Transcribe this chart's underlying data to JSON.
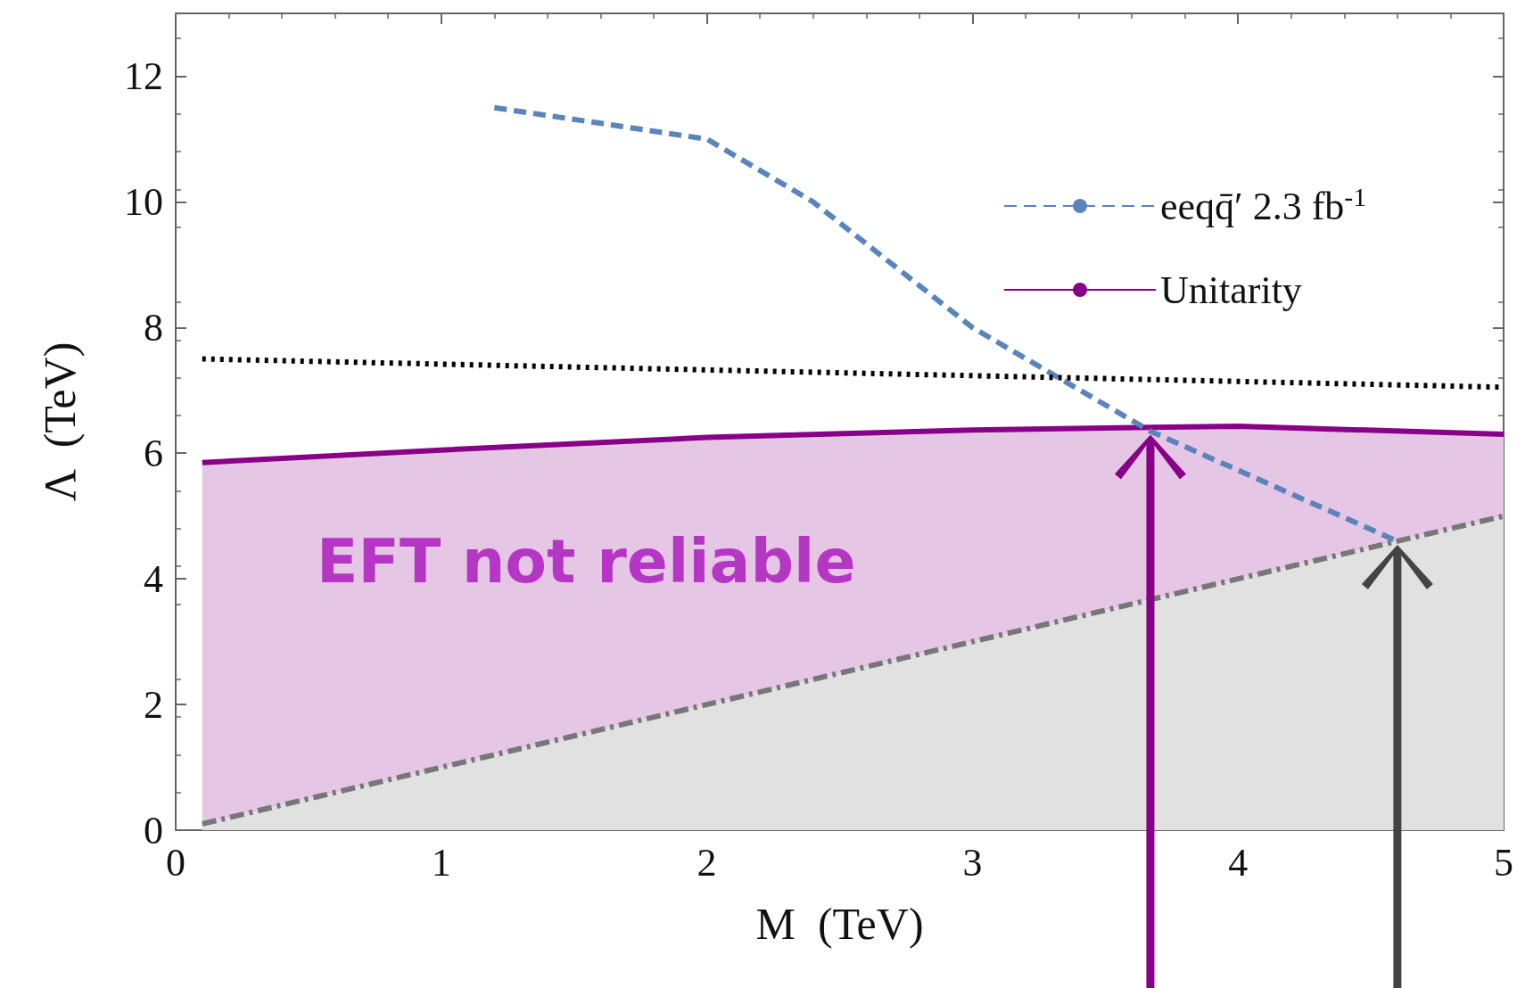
{
  "chart_data": {
    "type": "line",
    "xlabel": "M  (TeV)",
    "ylabel": "Λ  (TeV)",
    "xlim": [
      0,
      5
    ],
    "xticks": [
      0,
      1,
      2,
      3,
      4,
      5
    ],
    "ylim": [
      0,
      13
    ],
    "yticks": [
      0,
      2,
      4,
      6,
      8,
      10,
      12
    ],
    "grid": false,
    "legend": "top right",
    "marker": "none",
    "annotations": [
      "EFT not reliable"
    ],
    "series": [
      {
        "name": "eeqq̄′ 2.3 fb$^{-1}$",
        "color": "#5b84bc",
        "line_style": "dashed",
        "x": [
          1.2,
          2,
          2.4,
          3,
          3.67,
          4.6
        ],
        "values": [
          11.5,
          11,
          10,
          8,
          6.35,
          4.6
        ]
      },
      {
        "name": "Unitarity",
        "type": "area",
        "color": "#880088",
        "line_style": "solid",
        "x": [
          0.1,
          1,
          2,
          3,
          4,
          5
        ],
        "values": [
          5.85,
          6.05,
          6.25,
          6.37,
          6.43,
          6.3
        ]
      },
      {
        "color": "#000000",
        "line_style": "dotted",
        "x": [
          0.1,
          5
        ],
        "values": [
          7.5,
          7.05
        ]
      },
      {
        "type": "area",
        "color": "#777777",
        "line_style": "dashdot",
        "x": [
          0.1,
          5
        ],
        "values": [
          0.1,
          5
        ]
      }
    ]
  }
}
